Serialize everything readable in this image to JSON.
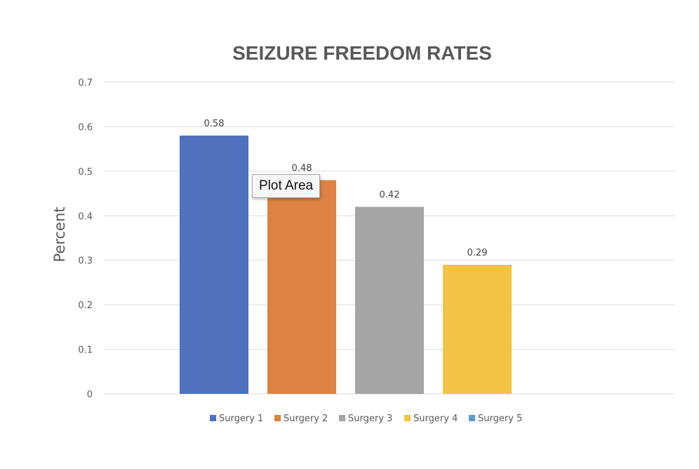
{
  "chart_data": {
    "type": "bar",
    "title": "SEIZURE FREEDOM RATES",
    "xlabel": "",
    "ylabel": "Percent",
    "ylim": [
      0,
      0.7
    ],
    "y_ticks": [
      "0",
      "0.1",
      "0.2",
      "0.3",
      "0.4",
      "0.5",
      "0.6",
      "0.7"
    ],
    "grid": true,
    "legend_position": "bottom",
    "series": [
      {
        "name": "Surgery 1",
        "value": 0.58,
        "label": "0.58",
        "color": "#4f71be"
      },
      {
        "name": "Surgery 2",
        "value": 0.48,
        "label": "0.48",
        "color": "#dd8242"
      },
      {
        "name": "Surgery 3",
        "value": 0.42,
        "label": "0.42",
        "color": "#a5a5a5"
      },
      {
        "name": "Surgery 4",
        "value": 0.29,
        "label": "0.29",
        "color": "#f3c343"
      },
      {
        "name": "Surgery 5",
        "value": null,
        "label": "",
        "color": "#5b9bd5"
      }
    ]
  },
  "tooltip": {
    "text": "Plot Area"
  }
}
